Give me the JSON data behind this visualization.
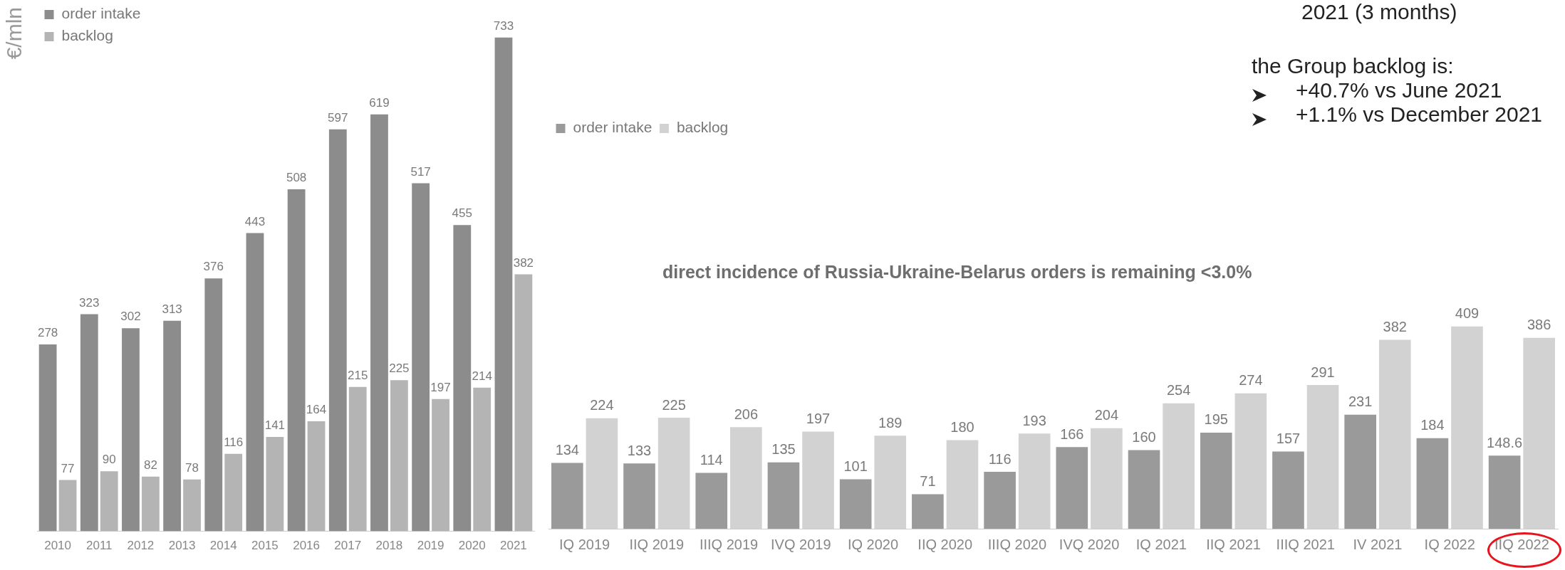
{
  "chart_data": [
    {
      "type": "bar",
      "ylabel": "€/mln",
      "categories": [
        "2010",
        "2011",
        "2012",
        "2013",
        "2014",
        "2015",
        "2016",
        "2017",
        "2018",
        "2019",
        "2020",
        "2021"
      ],
      "series": [
        {
          "name": "order intake",
          "color": "#8c8c8c",
          "values": [
            278,
            323,
            302,
            313,
            376,
            443,
            508,
            597,
            619,
            517,
            455,
            733
          ]
        },
        {
          "name": "backlog",
          "color": "#b4b4b4",
          "values": [
            77,
            90,
            82,
            78,
            116,
            141,
            164,
            215,
            225,
            197,
            214,
            382
          ]
        }
      ],
      "data_labels": true,
      "legend": "left",
      "grid": false
    },
    {
      "type": "bar",
      "categories": [
        "IQ 2019",
        "IIQ 2019",
        "IIIQ 2019",
        "IVQ 2019",
        "IQ 2020",
        "IIQ 2020",
        "IIIQ 2020",
        "IVQ 2020",
        "IQ 2021",
        "IIQ 2021",
        "IIIQ 2021",
        "IV 2021",
        "IQ 2022",
        "IIQ 2022"
      ],
      "series": [
        {
          "name": "order intake",
          "color": "#9a9a9a",
          "values": [
            134,
            133,
            114,
            135,
            101,
            71,
            116,
            166,
            160,
            195,
            157,
            231,
            184,
            148.6
          ]
        },
        {
          "name": "backlog",
          "color": "#d2d2d2",
          "values": [
            224,
            225,
            206,
            197,
            189,
            180,
            193,
            204,
            254,
            274,
            291,
            382,
            409,
            386
          ]
        }
      ],
      "data_labels": true,
      "legend": "top left",
      "grid": false,
      "annotations": [
        "2021 (3 months)",
        "the Group backlog is:",
        "+40.7% vs June 2021",
        "+1.1% vs December 2021",
        "direct incidence of Russia-Ukraine-Belarus orders is remaining <3.0%"
      ]
    }
  ]
}
